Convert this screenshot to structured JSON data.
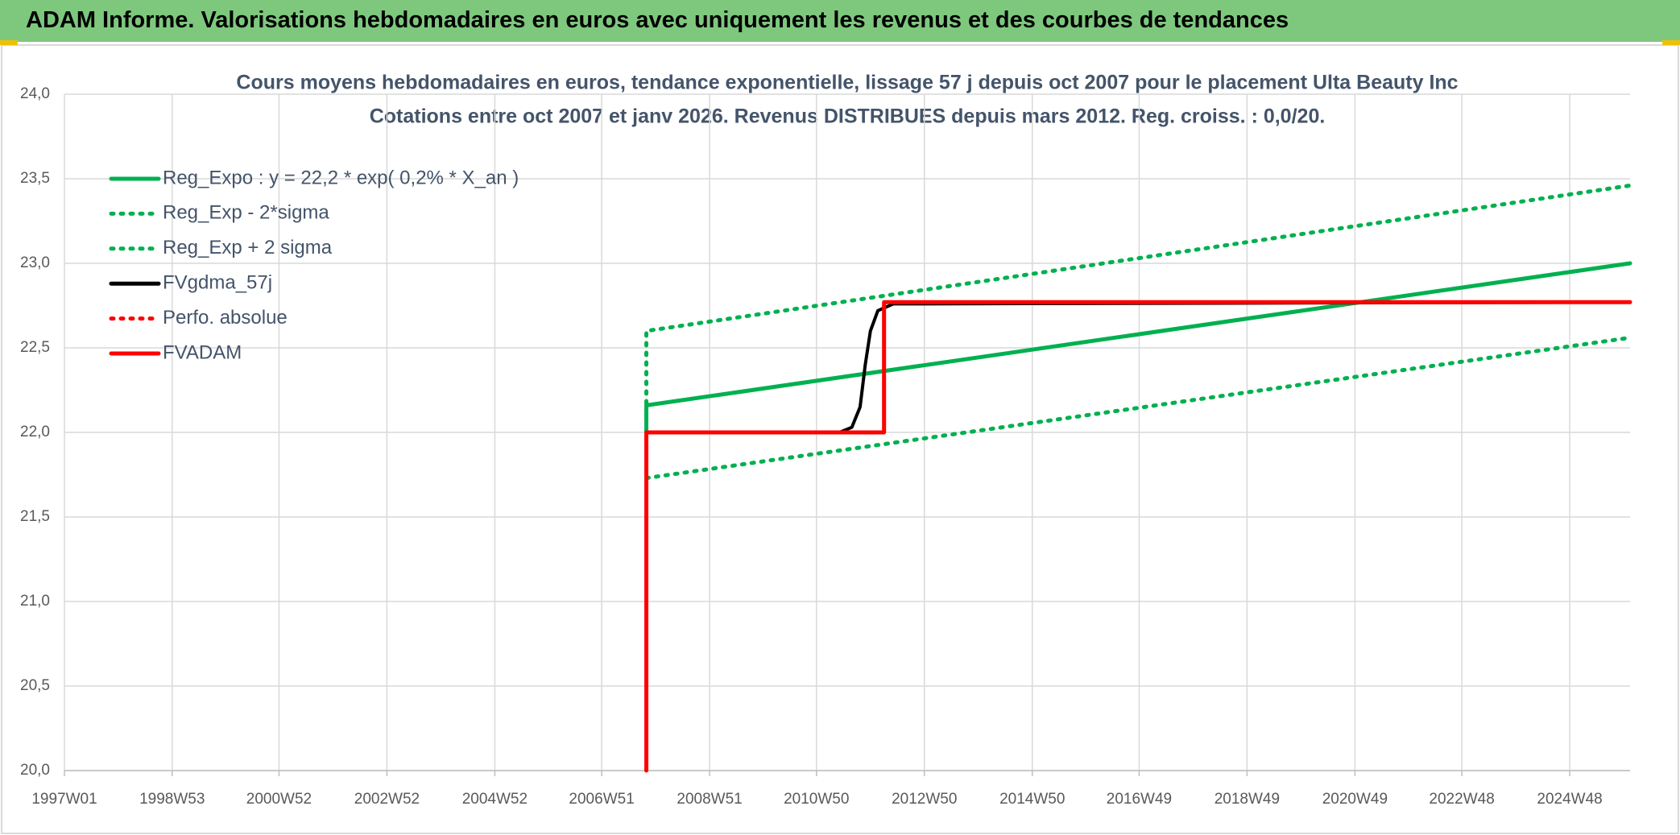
{
  "header": {
    "title": "ADAM Informe. Valorisations hebdomadaires en euros avec uniquement les revenus et des courbes de tendances"
  },
  "chart_data": {
    "type": "line",
    "title": "Cours moyens hebdomadaires en euros, tendance exponentielle, lissage 57 j depuis oct 2007 pour le placement Ulta Beauty Inc",
    "subtitle": "Cotations entre oct 2007 et janv 2026. Revenus DISTRIBUES depuis mars 2012. Reg. croiss. : 0,0/20.",
    "xlim": [
      "1997W01",
      "2026W02"
    ],
    "xticks": [
      "1997W01",
      "1998W53",
      "2000W52",
      "2002W52",
      "2004W52",
      "2006W51",
      "2008W51",
      "2010W50",
      "2012W50",
      "2014W50",
      "2016W49",
      "2018W49",
      "2020W49",
      "2022W48",
      "2024W48"
    ],
    "ylim": [
      20,
      24
    ],
    "yticks": [
      {
        "value": 20,
        "label": "20,0"
      },
      {
        "value": 20.5,
        "label": "20,5"
      },
      {
        "value": 21,
        "label": "21,0"
      },
      {
        "value": 21.5,
        "label": "21,5"
      },
      {
        "value": 22,
        "label": "22,0"
      },
      {
        "value": 22.5,
        "label": "22,5"
      },
      {
        "value": 23,
        "label": "23,0"
      },
      {
        "value": 23.5,
        "label": "23,5"
      },
      {
        "value": 24,
        "label": "24,0"
      }
    ],
    "grid": true,
    "legend": "top-left",
    "series": [
      {
        "name": "Reg_Expo : y = 22,2 * exp( 0,2% *  X_an )",
        "color": "#00b050",
        "line_style": "solid",
        "x": [
          "2007W42",
          "2007W42",
          "2026W02"
        ],
        "values": [
          22.0,
          22.16,
          23.0
        ]
      },
      {
        "name": "Reg_Exp - 2*sigma",
        "color": "#00b050",
        "line_style": "dotted",
        "x": [
          "2007W42",
          "2026W02"
        ],
        "values": [
          21.73,
          22.56
        ]
      },
      {
        "name": "Reg_Exp + 2 sigma",
        "color": "#00b050",
        "line_style": "dotted",
        "x": [
          "2007W42",
          "2007W42",
          "2026W02"
        ],
        "values": [
          22.0,
          22.6,
          23.46
        ]
      },
      {
        "name": "FVgdma_57j",
        "color": "#000000",
        "line_style": "solid",
        "x": [
          "2007W42",
          "2011W20",
          "2011W32",
          "2011W40",
          "2011W45",
          "2011W50",
          "2012W05",
          "2012W20",
          "2026W02"
        ],
        "values": [
          22.0,
          22.0,
          22.03,
          22.15,
          22.4,
          22.6,
          22.72,
          22.76,
          22.77
        ]
      },
      {
        "name": "Perfo. absolue",
        "color": "#ff0000",
        "line_style": "dotted",
        "x": [],
        "values": []
      },
      {
        "name": "FVADAM",
        "color": "#ff0000",
        "line_style": "solid",
        "x": [
          "2007W42",
          "2007W42",
          "2012W11",
          "2012W11",
          "2026W02"
        ],
        "values": [
          20.0,
          22.0,
          22.0,
          22.77,
          22.77
        ]
      }
    ]
  }
}
